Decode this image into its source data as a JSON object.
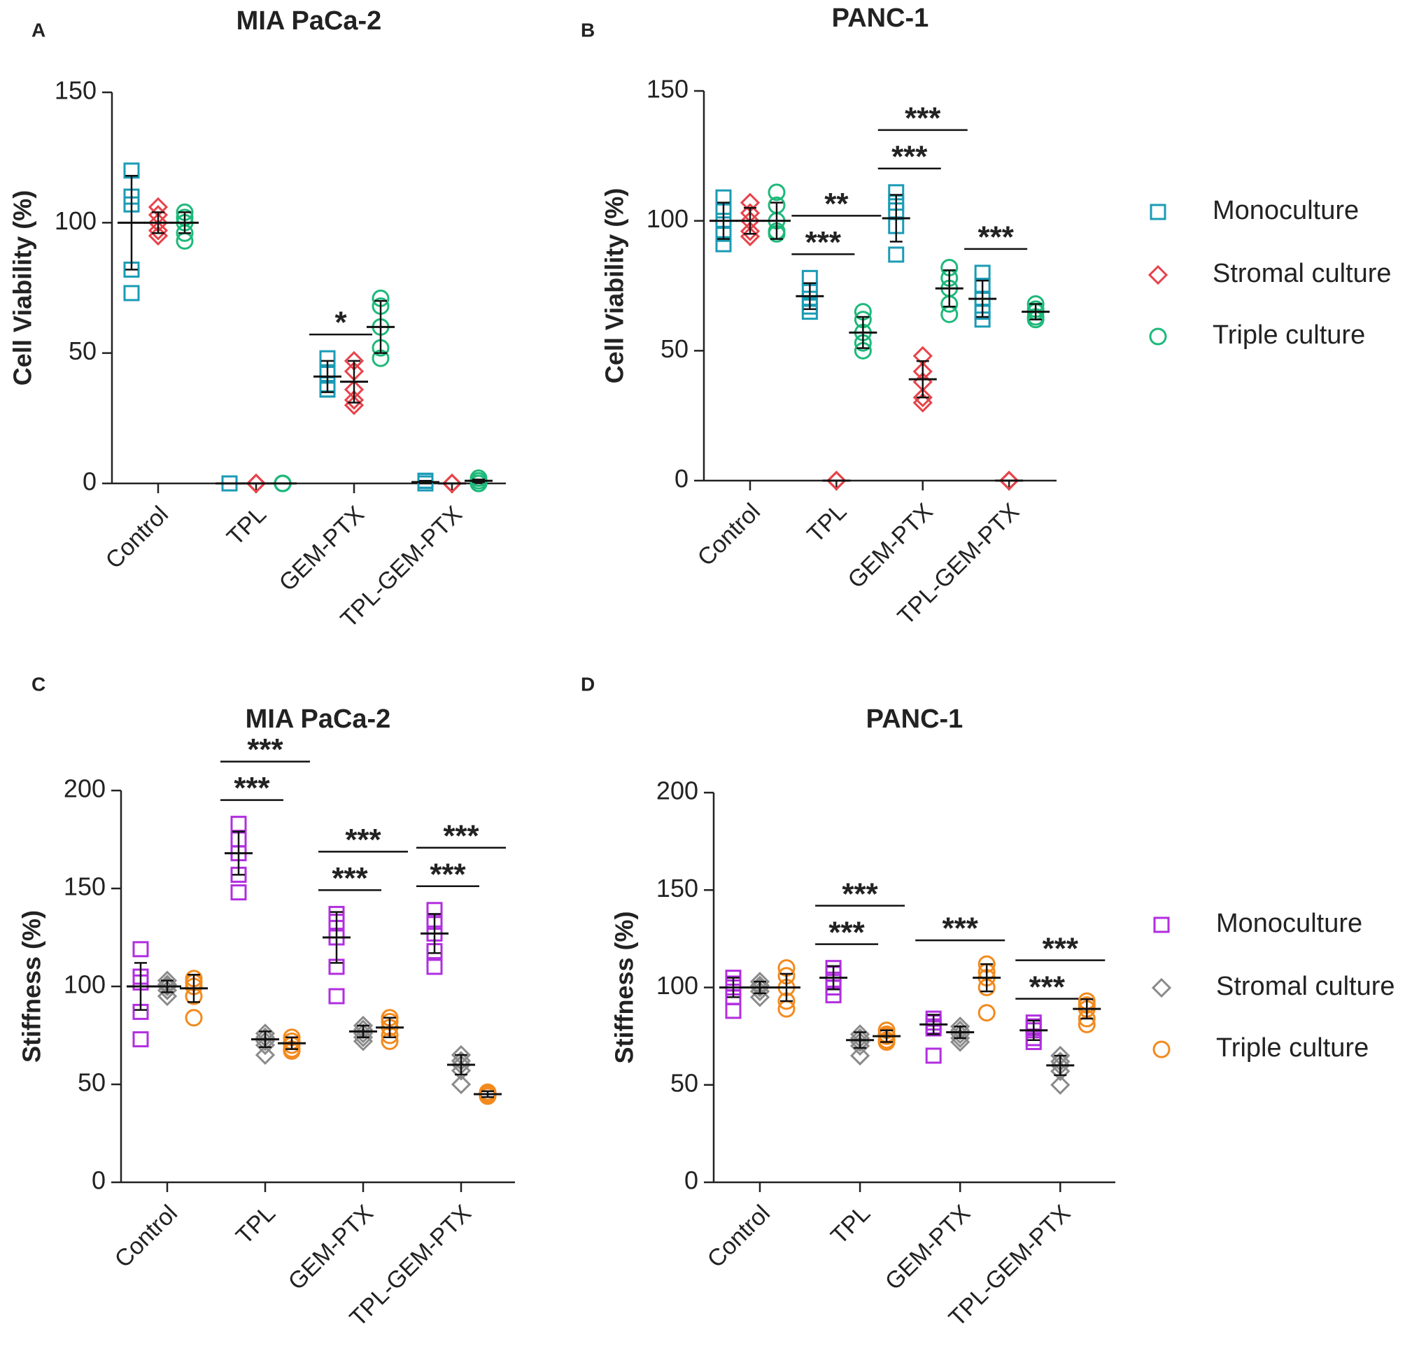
{
  "chart_data": [
    {
      "type": "dot",
      "panel": "A",
      "title": "MIA PaCa-2",
      "ylabel": "Cell Viability (%)",
      "categories": [
        "Control",
        "TPL",
        "GEM-PTX",
        "TPL-GEM-PTX"
      ],
      "ylim": [
        0,
        150
      ],
      "yticks": [
        0,
        50,
        100,
        150
      ],
      "series": [
        {
          "name": "Monoculture",
          "marker": "square",
          "color": "#1a9bb5",
          "values": [
            100,
            0,
            41,
            0.5
          ],
          "errors": [
            18,
            0,
            6,
            0.5
          ],
          "points": [
            [
              120,
              110,
              107,
              82,
              73
            ],
            [
              0,
              0,
              0,
              0,
              0
            ],
            [
              48,
              42,
              38,
              36,
              36
            ],
            [
              1,
              1,
              0,
              0,
              0
            ]
          ]
        },
        {
          "name": "Stromal culture",
          "marker": "diamond",
          "color": "#e8434a",
          "values": [
            100,
            0,
            39,
            0
          ],
          "errors": [
            4,
            0,
            8,
            0
          ],
          "points": [
            [
              106,
              103,
              100,
              97,
              95
            ],
            [
              0,
              0,
              0,
              0,
              0
            ],
            [
              47,
              43,
              36,
              32,
              30
            ],
            [
              0,
              0,
              0,
              0,
              0
            ]
          ]
        },
        {
          "name": "Triple culture",
          "marker": "circle",
          "color": "#1db97a",
          "values": [
            100,
            0,
            60,
            1
          ],
          "errors": [
            4,
            0,
            10,
            0.5
          ],
          "points": [
            [
              104,
              102,
              100,
              96,
              93
            ],
            [
              0,
              0,
              0,
              0,
              0
            ],
            [
              71,
              68,
              60,
              52,
              48
            ],
            [
              2,
              1,
              0,
              0,
              0
            ]
          ]
        }
      ],
      "annotations": [
        {
          "text": "*",
          "category": 2,
          "series": [
            0,
            1
          ]
        }
      ]
    },
    {
      "type": "dot",
      "panel": "B",
      "title": "PANC-1",
      "ylabel": "Cell Viability (%)",
      "legend": "right",
      "categories": [
        "Control",
        "TPL",
        "GEM-PTX",
        "TPL-GEM-PTX"
      ],
      "ylim": [
        0,
        150
      ],
      "yticks": [
        0,
        50,
        100,
        150
      ],
      "series": [
        {
          "name": "Monoculture",
          "marker": "square",
          "color": "#1a9bb5",
          "values": [
            100,
            71,
            101,
            70
          ],
          "errors": [
            7,
            5,
            9,
            7
          ],
          "points": [
            [
              109,
              104,
              100,
              95,
              91
            ],
            [
              78,
              73,
              70,
              67,
              65
            ],
            [
              111,
              107,
              104,
              98,
              87
            ],
            [
              80,
              75,
              70,
              65,
              62
            ]
          ]
        },
        {
          "name": "Stromal culture",
          "marker": "diamond",
          "color": "#e8434a",
          "values": [
            100,
            0,
            39,
            0
          ],
          "errors": [
            5,
            0,
            7,
            0
          ],
          "points": [
            [
              107,
              103,
              100,
              96,
              94
            ],
            [
              0,
              0,
              0,
              0,
              0
            ],
            [
              48,
              42,
              38,
              32,
              30
            ],
            [
              0,
              0,
              0,
              0,
              0
            ]
          ]
        },
        {
          "name": "Triple culture",
          "marker": "circle",
          "color": "#1db97a",
          "values": [
            100,
            57,
            74,
            65
          ],
          "errors": [
            7,
            6,
            7,
            3
          ],
          "points": [
            [
              111,
              106,
              100,
              96,
              95
            ],
            [
              65,
              62,
              57,
              53,
              50
            ],
            [
              82,
              78,
              74,
              68,
              64
            ],
            [
              68,
              66,
              65,
              63,
              62
            ]
          ]
        }
      ],
      "annotations": [
        {
          "text": "***",
          "category": 1,
          "series": [
            0,
            1
          ]
        },
        {
          "text": "**",
          "category": 1,
          "series": [
            0,
            2
          ]
        },
        {
          "text": "***",
          "category": 2,
          "series": [
            0,
            1
          ]
        },
        {
          "text": "***",
          "category": 2,
          "series": [
            0,
            2
          ]
        },
        {
          "text": "***",
          "category": 3,
          "series": [
            0,
            1
          ]
        }
      ]
    },
    {
      "type": "dot",
      "panel": "C",
      "title": "MIA PaCa-2",
      "ylabel": "Stiffness (%)",
      "categories": [
        "Control",
        "TPL",
        "GEM-PTX",
        "TPL-GEM-PTX"
      ],
      "ylim": [
        0,
        200
      ],
      "yticks": [
        0,
        50,
        100,
        150,
        200
      ],
      "series": [
        {
          "name": "Monoculture",
          "marker": "square",
          "color": "#b22ee0",
          "values": [
            100,
            168,
            125,
            127
          ],
          "errors": [
            12,
            11,
            13,
            10
          ],
          "points": [
            [
              119,
              105,
              102,
              87,
              73
            ],
            [
              183,
              175,
              168,
              157,
              148
            ],
            [
              137,
              133,
              125,
              110,
              95
            ],
            [
              139,
              133,
              127,
              118,
              110
            ]
          ]
        },
        {
          "name": "Stromal culture",
          "marker": "diamond",
          "color": "#8a8a8a",
          "values": [
            100,
            73,
            77,
            60
          ],
          "errors": [
            3,
            4,
            3,
            5
          ],
          "points": [
            [
              103,
              101,
              100,
              98,
              95
            ],
            [
              76,
              74,
              72,
              70,
              65
            ],
            [
              80,
              78,
              76,
              74,
              72
            ],
            [
              65,
              62,
              60,
              57,
              50
            ]
          ]
        },
        {
          "name": "Triple culture",
          "marker": "circle",
          "color": "#f28a1e",
          "values": [
            99,
            71,
            79,
            45
          ],
          "errors": [
            7,
            3,
            5,
            1.5
          ],
          "points": [
            [
              104,
              102,
              100,
              95,
              84
            ],
            [
              74,
              72,
              70,
              68,
              67
            ],
            [
              84,
              82,
              79,
              75,
              72
            ],
            [
              46,
              45,
              45,
              44,
              44
            ]
          ]
        }
      ],
      "annotations": [
        {
          "text": "***",
          "category": 1,
          "series": [
            0,
            1
          ]
        },
        {
          "text": "***",
          "category": 1,
          "series": [
            0,
            2
          ]
        },
        {
          "text": "***",
          "category": 2,
          "series": [
            0,
            1
          ]
        },
        {
          "text": "***",
          "category": 2,
          "series": [
            0,
            2
          ]
        },
        {
          "text": "***",
          "category": 3,
          "series": [
            0,
            1
          ]
        },
        {
          "text": "***",
          "category": 3,
          "series": [
            0,
            2
          ]
        }
      ]
    },
    {
      "type": "dot",
      "panel": "D",
      "title": "PANC-1",
      "ylabel": "Stiffness (%)",
      "legend": "right",
      "categories": [
        "Control",
        "TPL",
        "GEM-PTX",
        "TPL-GEM-PTX"
      ],
      "ylim": [
        0,
        200
      ],
      "yticks": [
        0,
        50,
        100,
        150,
        200
      ],
      "series": [
        {
          "name": "Monoculture",
          "marker": "square",
          "color": "#b22ee0",
          "values": [
            100,
            105,
            81,
            78
          ],
          "errors": [
            5,
            6,
            5,
            5
          ],
          "points": [
            [
              105,
              102,
              100,
              95,
              88
            ],
            [
              110,
              107,
              104,
              100,
              96
            ],
            [
              84,
              82,
              80,
              79,
              65
            ],
            [
              82,
              80,
              78,
              74,
              72
            ]
          ]
        },
        {
          "name": "Stromal culture",
          "marker": "diamond",
          "color": "#8a8a8a",
          "values": [
            100,
            73,
            77,
            60
          ],
          "errors": [
            3,
            4,
            3,
            5
          ],
          "points": [
            [
              103,
              101,
              100,
              98,
              95
            ],
            [
              76,
              74,
              72,
              70,
              65
            ],
            [
              80,
              78,
              76,
              74,
              72
            ],
            [
              65,
              62,
              60,
              57,
              50
            ]
          ]
        },
        {
          "name": "Triple culture",
          "marker": "circle",
          "color": "#f28a1e",
          "values": [
            100,
            75,
            105,
            89
          ],
          "errors": [
            7,
            3,
            7,
            5
          ],
          "points": [
            [
              110,
              106,
              100,
              93,
              89
            ],
            [
              78,
              76,
              75,
              73,
              72
            ],
            [
              112,
              108,
              105,
              100,
              87
            ],
            [
              93,
              91,
              89,
              84,
              81
            ]
          ]
        }
      ],
      "annotations": [
        {
          "text": "***",
          "category": 1,
          "series": [
            0,
            1
          ]
        },
        {
          "text": "***",
          "category": 1,
          "series": [
            0,
            2
          ]
        },
        {
          "text": "***",
          "category": 2,
          "series": [
            0,
            2
          ]
        },
        {
          "text": "***",
          "category": 3,
          "series": [
            0,
            1
          ]
        },
        {
          "text": "***",
          "category": 3,
          "series": [
            0,
            2
          ]
        }
      ]
    }
  ]
}
